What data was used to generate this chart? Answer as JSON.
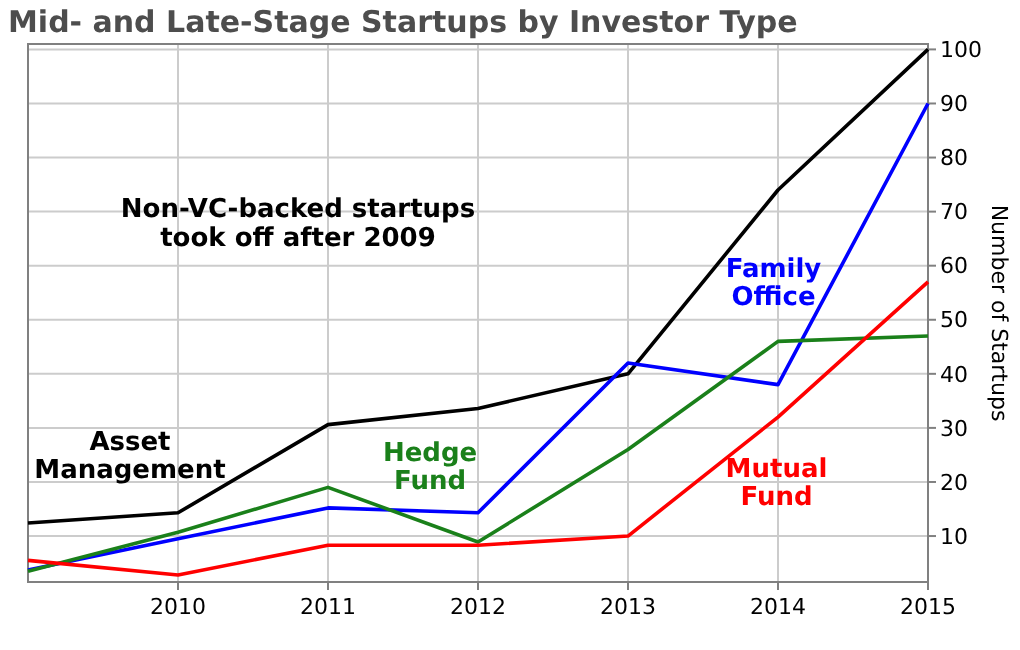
{
  "chart_data": {
    "type": "line",
    "title": "Mid- and Late-Stage Startups by Investor Type",
    "ylabel": "Number of Startups",
    "x": [
      2009,
      2010,
      2011,
      2012,
      2013,
      2014,
      2015
    ],
    "series": [
      {
        "name": "Asset Management",
        "color": "#000000",
        "values": [
          12.4,
          14.3,
          30.6,
          33.6,
          40,
          74,
          100
        ]
      },
      {
        "name": "Family Office",
        "color": "#0000ff",
        "values": [
          3.7,
          9.5,
          15.2,
          14.3,
          42,
          38,
          90
        ]
      },
      {
        "name": "Hedge Fund",
        "color": "#1a801a",
        "values": [
          3.5,
          10.7,
          19,
          8.9,
          26,
          46,
          47
        ]
      },
      {
        "name": "Mutual Fund",
        "color": "#ff0000",
        "values": [
          5.5,
          2.8,
          8.3,
          8.3,
          10,
          32,
          57
        ]
      }
    ],
    "annotations": [
      "Non-VC-backed startups took off after 2009"
    ],
    "xlim": [
      2009,
      2015
    ],
    "ylim": [
      1.5,
      101
    ],
    "xticks": [
      2010,
      2011,
      2012,
      2013,
      2014,
      2015
    ],
    "yticks": [
      10,
      20,
      30,
      40,
      50,
      60,
      70,
      80,
      90,
      100
    ],
    "grid": true,
    "legend": false,
    "marker": "none",
    "line_style": "solid"
  }
}
